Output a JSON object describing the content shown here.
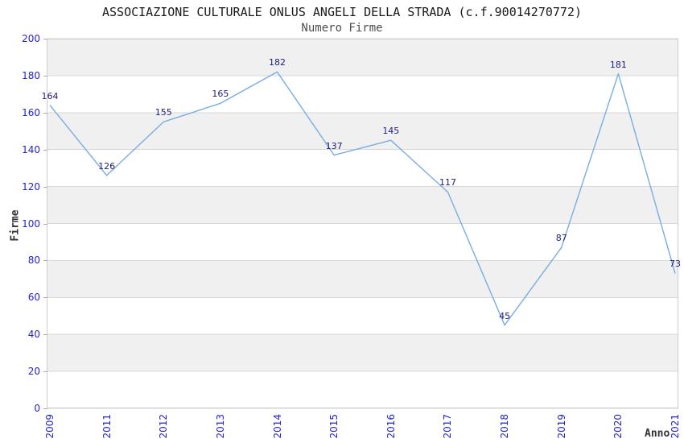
{
  "chart_data": {
    "type": "line",
    "title": "ASSOCIAZIONE CULTURALE ONLUS ANGELI DELLA STRADA (c.f.90014270772)",
    "subtitle": "Numero Firme",
    "ylabel": "Firme",
    "xlabel": "Anno",
    "categories": [
      "2009",
      "2011",
      "2012",
      "2013",
      "2014",
      "2015",
      "2016",
      "2017",
      "2018",
      "2019",
      "2020",
      "2021"
    ],
    "values": [
      164,
      126,
      155,
      165,
      182,
      137,
      145,
      117,
      45,
      87,
      181,
      73
    ],
    "ylim": [
      0,
      200
    ],
    "y_ticks": [
      0,
      20,
      40,
      60,
      80,
      100,
      120,
      140,
      160,
      180,
      200
    ],
    "grid": "horizontal-bands-every-20",
    "legend": "none",
    "colors": {
      "line": "#79ade1",
      "tick_label": "#2323cc",
      "data_label": "#1c1c78",
      "band": "#f0f0f0",
      "grid": "#d9d9d9",
      "border": "#cccccc",
      "title": "#1a1a1a",
      "subtitle": "#4d4d4d",
      "axis_title": "#333333"
    }
  }
}
